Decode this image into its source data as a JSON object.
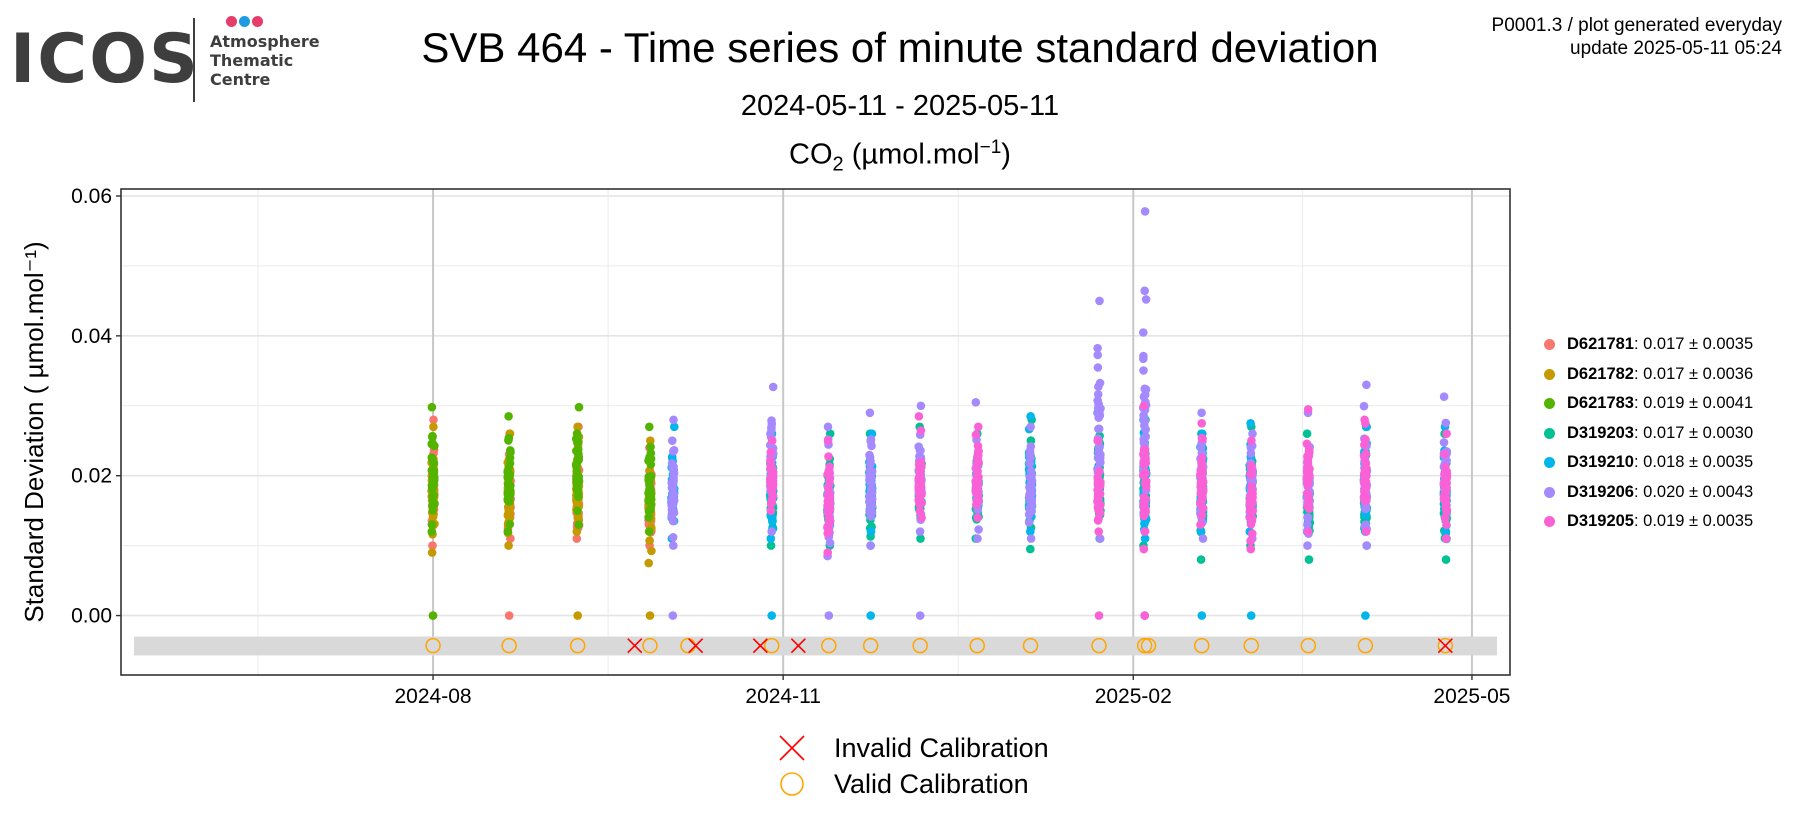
{
  "logo": {
    "word": "ICOS",
    "lines": [
      "Atmosphere",
      "Thematic",
      "Centre"
    ],
    "dot_colors": [
      "#e63c6b",
      "#1e9be0",
      "#e63c6b"
    ]
  },
  "header": {
    "title": "SVB 464 - Time series of minute standard deviation",
    "subtitle": "2024-05-11 - 2025-05-11",
    "species_prefix": "CO",
    "species_sub": "2",
    "species_unit": " (µmol.mol",
    "species_sup": "−1",
    "species_close": ")",
    "meta_line1": "P0001.3 / plot generated everyday",
    "meta_line2": "update  2025-05-11 05:24"
  },
  "chart_data": {
    "type": "scatter",
    "title": "SVB 464 - Time series of minute standard deviation",
    "ylabel": "Standard Deviation ( µmol.mol⁻¹)",
    "xlabel": "",
    "x_range": [
      "2024-05-11",
      "2025-05-11"
    ],
    "ylim": [
      -0.0085,
      0.061
    ],
    "yticks": [
      0.0,
      0.02,
      0.04,
      0.06
    ],
    "ytick_labels": [
      "0.00",
      "0.02",
      "0.04",
      "0.06"
    ],
    "xticks": [
      "2024-08-01",
      "2024-11-01",
      "2025-02-01",
      "2025-05-01"
    ],
    "xtick_labels": [
      "2024-08",
      "2024-11",
      "2025-02",
      "2025-05"
    ],
    "grid": true,
    "legend_position": "right",
    "series": [
      {
        "name": "D621781",
        "summary": "0.017 ± 0.0035",
        "color": "#F8766D",
        "clusters": [
          {
            "date": "2024-08-01",
            "min": 0.01,
            "max": 0.028,
            "zero": true
          },
          {
            "date": "2024-08-21",
            "min": 0.011,
            "max": 0.026,
            "zero": true
          },
          {
            "date": "2024-09-08",
            "min": 0.011,
            "max": 0.027,
            "zero": false
          },
          {
            "date": "2024-09-27",
            "min": 0.01,
            "max": 0.024,
            "zero": false
          }
        ]
      },
      {
        "name": "D621782",
        "summary": "0.017 ± 0.0036",
        "color": "#C49A00",
        "clusters": [
          {
            "date": "2024-08-01",
            "min": 0.009,
            "max": 0.027,
            "zero": false
          },
          {
            "date": "2024-08-21",
            "min": 0.01,
            "max": 0.026,
            "zero": false
          },
          {
            "date": "2024-09-08",
            "min": 0.012,
            "max": 0.027,
            "zero": true
          },
          {
            "date": "2024-09-27",
            "min": 0.0075,
            "max": 0.025,
            "zero": true
          }
        ]
      },
      {
        "name": "D621783",
        "summary": "0.019 ± 0.0041",
        "color": "#53B400",
        "clusters": [
          {
            "date": "2024-08-01",
            "min": 0.012,
            "max": 0.0298,
            "zero": true
          },
          {
            "date": "2024-08-21",
            "min": 0.012,
            "max": 0.0285,
            "zero": false
          },
          {
            "date": "2024-09-08",
            "min": 0.013,
            "max": 0.0298,
            "zero": false
          },
          {
            "date": "2024-09-27",
            "min": 0.012,
            "max": 0.027,
            "zero": false
          }
        ]
      },
      {
        "name": "D319203",
        "summary": "0.017 ± 0.0030",
        "color": "#00C094",
        "clusters": [
          {
            "date": "2024-10-29",
            "min": 0.01,
            "max": 0.026,
            "zero": false
          },
          {
            "date": "2024-11-13",
            "min": 0.01,
            "max": 0.026,
            "zero": false
          },
          {
            "date": "2024-11-24",
            "min": 0.01,
            "max": 0.026,
            "zero": false
          },
          {
            "date": "2024-12-07",
            "min": 0.011,
            "max": 0.027,
            "zero": false
          },
          {
            "date": "2024-12-22",
            "min": 0.011,
            "max": 0.026,
            "zero": false
          },
          {
            "date": "2025-01-05",
            "min": 0.0095,
            "max": 0.028,
            "zero": false
          },
          {
            "date": "2025-01-23",
            "min": 0.011,
            "max": 0.029,
            "zero": false
          },
          {
            "date": "2025-02-04",
            "min": 0.01,
            "max": 0.028,
            "zero": false
          },
          {
            "date": "2025-02-19",
            "min": 0.008,
            "max": 0.026,
            "zero": false
          },
          {
            "date": "2025-03-04",
            "min": 0.01,
            "max": 0.027,
            "zero": false
          },
          {
            "date": "2025-03-19",
            "min": 0.008,
            "max": 0.026,
            "zero": false
          },
          {
            "date": "2025-04-03",
            "min": 0.01,
            "max": 0.027,
            "zero": false
          },
          {
            "date": "2025-04-24",
            "min": 0.008,
            "max": 0.026,
            "zero": false
          }
        ]
      },
      {
        "name": "D319210",
        "summary": "0.018 ± 0.0035",
        "color": "#00B6EB",
        "clusters": [
          {
            "date": "2024-10-03",
            "min": 0.011,
            "max": 0.027,
            "zero": false
          },
          {
            "date": "2024-10-29",
            "min": 0.011,
            "max": 0.026,
            "zero": true
          },
          {
            "date": "2024-11-24",
            "min": 0.012,
            "max": 0.026,
            "zero": true
          },
          {
            "date": "2025-01-05",
            "min": 0.012,
            "max": 0.0285,
            "zero": false
          },
          {
            "date": "2025-02-04",
            "min": 0.011,
            "max": 0.028,
            "zero": true
          },
          {
            "date": "2025-02-19",
            "min": 0.012,
            "max": 0.026,
            "zero": true
          },
          {
            "date": "2025-03-04",
            "min": 0.012,
            "max": 0.0275,
            "zero": true
          },
          {
            "date": "2025-04-03",
            "min": 0.012,
            "max": 0.027,
            "zero": true
          },
          {
            "date": "2025-04-24",
            "min": 0.012,
            "max": 0.027,
            "zero": false
          }
        ]
      },
      {
        "name": "D319206",
        "summary": "0.020 ± 0.0043",
        "color": "#A58AFF",
        "clusters": [
          {
            "date": "2024-10-03",
            "min": 0.01,
            "max": 0.028,
            "zero": true
          },
          {
            "date": "2024-10-29",
            "min": 0.012,
            "max": 0.0327,
            "zero": false
          },
          {
            "date": "2024-11-13",
            "min": 0.0085,
            "max": 0.027,
            "zero": true
          },
          {
            "date": "2024-11-24",
            "min": 0.01,
            "max": 0.029,
            "zero": false
          },
          {
            "date": "2024-12-07",
            "min": 0.012,
            "max": 0.03,
            "zero": true
          },
          {
            "date": "2024-12-22",
            "min": 0.011,
            "max": 0.0305,
            "zero": false
          },
          {
            "date": "2025-01-05",
            "min": 0.011,
            "max": 0.027,
            "zero": false
          },
          {
            "date": "2025-01-23",
            "min": 0.011,
            "max": 0.045,
            "zero": false
          },
          {
            "date": "2025-02-04",
            "min": 0.012,
            "max": 0.0578,
            "zero": false
          },
          {
            "date": "2025-02-19",
            "min": 0.011,
            "max": 0.029,
            "zero": false
          },
          {
            "date": "2025-03-04",
            "min": 0.011,
            "max": 0.026,
            "zero": false
          },
          {
            "date": "2025-03-19",
            "min": 0.01,
            "max": 0.029,
            "zero": false
          },
          {
            "date": "2025-04-03",
            "min": 0.01,
            "max": 0.033,
            "zero": false
          },
          {
            "date": "2025-04-24",
            "min": 0.011,
            "max": 0.0313,
            "zero": false
          }
        ]
      },
      {
        "name": "D319205",
        "summary": "0.019 ± 0.0035",
        "color": "#FB61D7",
        "clusters": [
          {
            "date": "2024-10-29",
            "min": 0.015,
            "max": 0.025,
            "zero": false
          },
          {
            "date": "2024-11-13",
            "min": 0.009,
            "max": 0.025,
            "zero": false
          },
          {
            "date": "2024-12-07",
            "min": 0.014,
            "max": 0.0285,
            "zero": false
          },
          {
            "date": "2024-12-22",
            "min": 0.014,
            "max": 0.027,
            "zero": false
          },
          {
            "date": "2025-01-23",
            "min": 0.012,
            "max": 0.025,
            "zero": true
          },
          {
            "date": "2025-02-04",
            "min": 0.0095,
            "max": 0.03,
            "zero": true
          },
          {
            "date": "2025-02-19",
            "min": 0.013,
            "max": 0.0275,
            "zero": false
          },
          {
            "date": "2025-03-04",
            "min": 0.0095,
            "max": 0.025,
            "zero": false
          },
          {
            "date": "2025-03-19",
            "min": 0.012,
            "max": 0.0295,
            "zero": false
          },
          {
            "date": "2025-04-03",
            "min": 0.012,
            "max": 0.028,
            "zero": false
          },
          {
            "date": "2025-04-24",
            "min": 0.011,
            "max": 0.026,
            "zero": false
          }
        ]
      }
    ],
    "calibrations": {
      "y": -0.0043,
      "band": [
        -0.0057,
        -0.003
      ],
      "band_color": "#d9d9d9",
      "valid": [
        "2024-08-01",
        "2024-08-21",
        "2024-09-08",
        "2024-09-27",
        "2024-10-07",
        "2024-10-29",
        "2024-11-13",
        "2024-11-24",
        "2024-12-07",
        "2024-12-22",
        "2025-01-05",
        "2025-01-23",
        "2025-02-04",
        "2025-02-05",
        "2025-02-19",
        "2025-03-04",
        "2025-03-19",
        "2025-04-03",
        "2025-04-24"
      ],
      "invalid": [
        "2024-09-23",
        "2024-10-09",
        "2024-10-26",
        "2024-11-05",
        "2025-04-24"
      ]
    }
  },
  "calib_legend": [
    {
      "kind": "invalid",
      "label": "Invalid Calibration",
      "color": "#ff0000"
    },
    {
      "kind": "valid",
      "label": "Valid Calibration",
      "color": "#ffa500"
    }
  ]
}
